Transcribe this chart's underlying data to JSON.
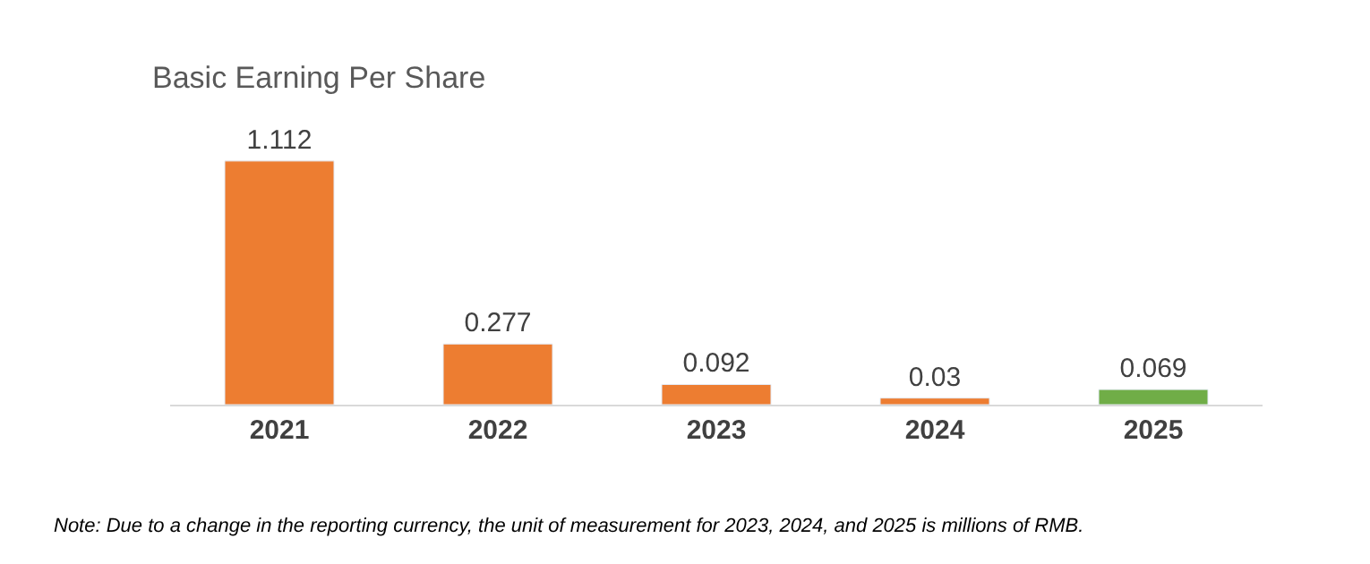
{
  "chart_data": {
    "type": "bar",
    "title": "Basic Earning Per Share",
    "categories": [
      "2021",
      "2022",
      "2023",
      "2024",
      "2025"
    ],
    "values": [
      1.112,
      0.277,
      0.092,
      0.03,
      0.069
    ],
    "colors": [
      "#ed7d31",
      "#ed7d31",
      "#ed7d31",
      "#ed7d31",
      "#70ad47"
    ],
    "data_labels": true,
    "legend": false,
    "tick_labels": "x",
    "annotations": [
      "Note: Due to a change in the reporting currency, the unit of measurement for 2023, 2024, and 2025 is millions of RMB."
    ]
  }
}
